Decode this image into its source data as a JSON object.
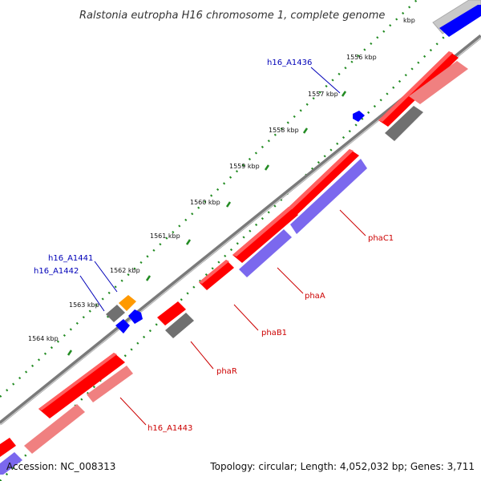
{
  "title": "Ralstonia eutropha H16 chromosome 1, complete genome",
  "ruler": {
    "labels": [
      {
        "text": "1556 kbp"
      },
      {
        "text": "1557 kbp"
      },
      {
        "text": "1558 kbp"
      },
      {
        "text": "1559 kbp"
      },
      {
        "text": "1560 kbp"
      },
      {
        "text": "1561 kbp"
      },
      {
        "text": "1562 kbp"
      },
      {
        "text": "1563 kbp"
      },
      {
        "text": "1564 kbp"
      },
      {
        "text": "kbp"
      }
    ]
  },
  "gene_labels": [
    {
      "text": "h16_A1436",
      "color": "#0000b8"
    },
    {
      "text": "phaC1",
      "color": "#cc0000"
    },
    {
      "text": "phaA",
      "color": "#cc0000"
    },
    {
      "text": "phaB1",
      "color": "#cc0000"
    },
    {
      "text": "phaR",
      "color": "#cc0000"
    },
    {
      "text": "h16_A1443",
      "color": "#cc0000"
    },
    {
      "text": "h16_A1441",
      "color": "#0000b8"
    },
    {
      "text": "h16_A1442",
      "color": "#0000b8"
    }
  ],
  "footer": {
    "accession": "Accession: NC_008313",
    "topology": "Topology: circular; Length: 4,052,032 bp; Genes: 3,711"
  },
  "colors": {
    "cds": "#ff0000",
    "cds_light": "#f08080",
    "rna": "#7b68ee",
    "gray": "#707070",
    "blue": "#0000ff",
    "orange": "#ff9900",
    "ruler_dot": "#228b22"
  }
}
